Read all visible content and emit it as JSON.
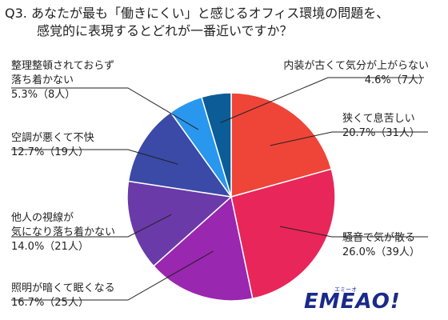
{
  "title": {
    "line1": "Q3. あなたが最も「働きにくい」と感じるオフィス環境の問題を、",
    "line2": "感覚的に表現するとどれが一番近いですか？"
  },
  "chart_data": {
    "type": "pie",
    "start": "12 o'clock",
    "direction": "clockwise",
    "slices": [
      {
        "label": "狭くて息苦しい",
        "value": 20.7,
        "count_label": "20.7%（31人）",
        "color": "#ee4538"
      },
      {
        "label": "騒音で気が散る",
        "value": 26.0,
        "count_label": "26.0%（39人）",
        "color": "#e8265a"
      },
      {
        "label": "照明が暗くて眠くなる",
        "value": 16.7,
        "count_label": "16.7%（25人）",
        "color": "#9a27b0"
      },
      {
        "label": "他人の視線が気になり落ち着かない",
        "value": 14.0,
        "count_label": "14.0%（21人）",
        "color": "#6a3aa8"
      },
      {
        "label": "空調が悪くて不快",
        "value": 12.7,
        "count_label": "12.7%（19人）",
        "color": "#3a4aa6"
      },
      {
        "label": "整理整頓されておらず落ち着かない",
        "value": 5.3,
        "count_label": "5.3%（8人）",
        "color": "#2a97ee"
      },
      {
        "label": "内装が古くて気分が上がらない",
        "value": 4.6,
        "count_label": "4.6%（7人）",
        "color": "#0c5d97"
      }
    ]
  },
  "labels": {
    "s0": {
      "line1": "狭くて息苦しい",
      "line2": "20.7%（31人）"
    },
    "s1": {
      "line1": "騒音で気が散る",
      "line2": "26.0%（39人）"
    },
    "s2": {
      "line1": "照明が暗くて眠くなる",
      "line2": "16.7%（25人）"
    },
    "s3": {
      "line1": "他人の視線が",
      "line2": "気になり落ち着かない",
      "line3": "14.0%（21人）"
    },
    "s4": {
      "line1": "空調が悪くて不快",
      "line2": "12.7%（19人）"
    },
    "s5": {
      "line1": "整理整頓されておらず",
      "line2": "落ち着かない",
      "line3": "5.3%（8人）"
    },
    "s6": {
      "line1": "内装が古くて気分が上がらない",
      "line2": "4.6%（7人）"
    }
  },
  "logo": {
    "text": "EMEAO!",
    "sub": "エミーオ"
  }
}
